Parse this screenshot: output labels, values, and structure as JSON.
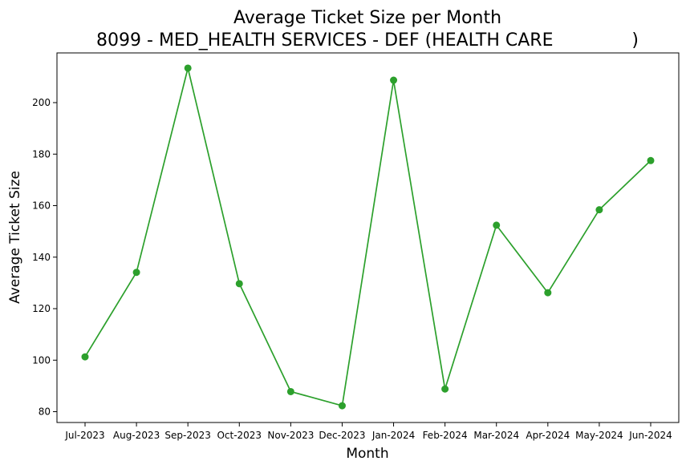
{
  "chart_data": {
    "type": "line",
    "title": "Average Ticket Size per Month",
    "subtitle": "8099 - MED_HEALTH SERVICES - DEF (HEALTH CARE              )",
    "xlabel": "Month",
    "ylabel": "Average Ticket Size",
    "categories": [
      "Jul-2023",
      "Aug-2023",
      "Sep-2023",
      "Oct-2023",
      "Nov-2023",
      "Dec-2023",
      "Jan-2024",
      "Feb-2024",
      "Mar-2024",
      "Apr-2024",
      "May-2024",
      "Jun-2024"
    ],
    "series": [
      {
        "values": [
          101.3,
          134.1,
          213.4,
          129.7,
          87.8,
          82.3,
          208.7,
          88.8,
          152.4,
          126.2,
          158.4,
          177.5
        ],
        "color": "#2ca02c",
        "marker": "circle"
      }
    ],
    "ylim": [
      75.8,
      219.3
    ],
    "yticks": [
      80,
      100,
      120,
      140,
      160,
      180,
      200
    ],
    "grid": false,
    "legend": "none"
  }
}
